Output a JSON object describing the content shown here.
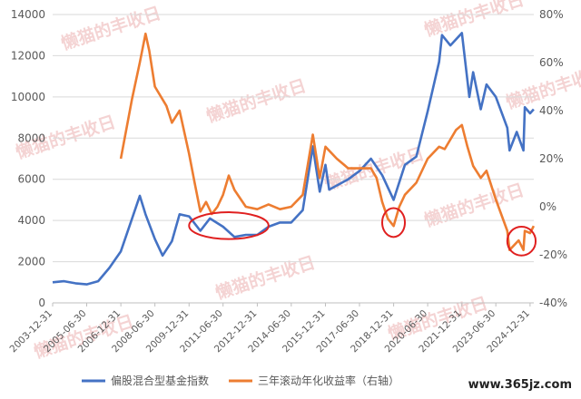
{
  "chart_data": {
    "type": "line",
    "x_tick_labels": [
      "2003-12-31",
      "2005-06-30",
      "2006-12-31",
      "2008-06-30",
      "2009-12-31",
      "2011-06-30",
      "2012-12-31",
      "2014-06-30",
      "2015-12-31",
      "2017-06-30",
      "2018-12-31",
      "2020-06-30",
      "2021-12-31",
      "2023-06-30",
      "2024-12-31"
    ],
    "y_left": {
      "ylim": [
        0,
        14000
      ],
      "ticks": [
        "0",
        "2000",
        "4000",
        "6000",
        "8000",
        "10000",
        "12000",
        "14000"
      ]
    },
    "y_right": {
      "ylim": [
        -0.4,
        0.8
      ],
      "ticks": [
        "-40%",
        "-20%",
        "0%",
        "20%",
        "40%",
        "60%",
        "80%"
      ]
    },
    "series": [
      {
        "name": "偏股混合型基金指数",
        "axis": "left",
        "color": "#4472c4",
        "points": [
          [
            "2003-12-31",
            1000
          ],
          [
            "2004-06-30",
            1050
          ],
          [
            "2004-12-31",
            950
          ],
          [
            "2005-06-30",
            900
          ],
          [
            "2005-12-31",
            1050
          ],
          [
            "2006-06-30",
            1700
          ],
          [
            "2006-12-31",
            2500
          ],
          [
            "2007-06-30",
            4100
          ],
          [
            "2007-10-31",
            5200
          ],
          [
            "2008-01-31",
            4300
          ],
          [
            "2008-06-30",
            3100
          ],
          [
            "2008-10-31",
            2300
          ],
          [
            "2009-03-31",
            3000
          ],
          [
            "2009-07-31",
            4300
          ],
          [
            "2009-12-31",
            4200
          ],
          [
            "2010-06-30",
            3500
          ],
          [
            "2010-11-30",
            4100
          ],
          [
            "2011-06-30",
            3700
          ],
          [
            "2011-12-31",
            3200
          ],
          [
            "2012-06-30",
            3300
          ],
          [
            "2012-12-31",
            3300
          ],
          [
            "2013-06-30",
            3700
          ],
          [
            "2013-12-31",
            3900
          ],
          [
            "2014-06-30",
            3900
          ],
          [
            "2014-12-31",
            4500
          ],
          [
            "2015-06-12",
            7600
          ],
          [
            "2015-09-30",
            5400
          ],
          [
            "2015-12-31",
            6700
          ],
          [
            "2016-02-29",
            5500
          ],
          [
            "2016-12-31",
            6000
          ],
          [
            "2017-06-30",
            6400
          ],
          [
            "2017-12-31",
            7000
          ],
          [
            "2018-06-30",
            6200
          ],
          [
            "2018-12-31",
            5000
          ],
          [
            "2019-06-30",
            6700
          ],
          [
            "2019-12-31",
            7100
          ],
          [
            "2020-06-30",
            9300
          ],
          [
            "2020-12-31",
            11700
          ],
          [
            "2021-02-15",
            13000
          ],
          [
            "2021-06-30",
            12500
          ],
          [
            "2021-12-31",
            13100
          ],
          [
            "2022-04-30",
            10000
          ],
          [
            "2022-06-30",
            11200
          ],
          [
            "2022-10-31",
            9400
          ],
          [
            "2023-01-31",
            10600
          ],
          [
            "2023-06-30",
            10000
          ],
          [
            "2023-12-31",
            8500
          ],
          [
            "2024-02-05",
            7400
          ],
          [
            "2024-05-31",
            8300
          ],
          [
            "2024-09-15",
            7400
          ],
          [
            "2024-10-08",
            9500
          ],
          [
            "2024-12-31",
            9200
          ],
          [
            "2025-02-28",
            9400
          ]
        ]
      },
      {
        "name": "三年滚动年化收益率（右轴）",
        "axis": "right",
        "color": "#ed7d31",
        "points": [
          [
            "2006-12-31",
            0.2
          ],
          [
            "2007-06-30",
            0.45
          ],
          [
            "2007-10-31",
            0.6
          ],
          [
            "2008-01-31",
            0.72
          ],
          [
            "2008-03-31",
            0.65
          ],
          [
            "2008-06-30",
            0.5
          ],
          [
            "2008-12-31",
            0.42
          ],
          [
            "2009-03-31",
            0.35
          ],
          [
            "2009-07-31",
            0.4
          ],
          [
            "2009-12-31",
            0.22
          ],
          [
            "2010-03-31",
            0.1
          ],
          [
            "2010-06-30",
            -0.02
          ],
          [
            "2010-09-30",
            0.02
          ],
          [
            "2010-12-31",
            -0.03
          ],
          [
            "2011-03-31",
            0.0
          ],
          [
            "2011-06-30",
            0.05
          ],
          [
            "2011-09-30",
            0.13
          ],
          [
            "2011-12-31",
            0.07
          ],
          [
            "2012-06-30",
            0.0
          ],
          [
            "2012-12-31",
            -0.01
          ],
          [
            "2013-06-30",
            0.01
          ],
          [
            "2013-12-31",
            -0.01
          ],
          [
            "2014-06-30",
            0.0
          ],
          [
            "2014-12-31",
            0.05
          ],
          [
            "2015-06-12",
            0.3
          ],
          [
            "2015-09-30",
            0.12
          ],
          [
            "2015-12-31",
            0.25
          ],
          [
            "2016-06-30",
            0.2
          ],
          [
            "2016-12-31",
            0.16
          ],
          [
            "2017-06-30",
            0.16
          ],
          [
            "2017-12-31",
            0.16
          ],
          [
            "2018-03-31",
            0.12
          ],
          [
            "2018-06-30",
            0.02
          ],
          [
            "2018-09-30",
            -0.05
          ],
          [
            "2018-12-31",
            -0.08
          ],
          [
            "2019-03-31",
            0.0
          ],
          [
            "2019-06-30",
            0.05
          ],
          [
            "2019-12-31",
            0.1
          ],
          [
            "2020-06-30",
            0.2
          ],
          [
            "2020-12-31",
            0.25
          ],
          [
            "2021-03-31",
            0.24
          ],
          [
            "2021-09-30",
            0.32
          ],
          [
            "2021-12-31",
            0.34
          ],
          [
            "2022-03-31",
            0.25
          ],
          [
            "2022-06-30",
            0.17
          ],
          [
            "2022-10-31",
            0.12
          ],
          [
            "2023-01-31",
            0.15
          ],
          [
            "2023-06-30",
            0.03
          ],
          [
            "2023-12-31",
            -0.1
          ],
          [
            "2024-02-05",
            -0.18
          ],
          [
            "2024-06-30",
            -0.14
          ],
          [
            "2024-09-15",
            -0.18
          ],
          [
            "2024-10-08",
            -0.1
          ],
          [
            "2024-12-31",
            -0.11
          ],
          [
            "2025-02-28",
            -0.08
          ]
        ]
      }
    ],
    "annotations": [
      {
        "type": "ellipse",
        "color": "#e02020",
        "x_range": [
          "2009-12-31",
          "2013-06-30"
        ],
        "y_range_left": [
          3100,
          4400
        ]
      },
      {
        "type": "ellipse",
        "color": "#e02020",
        "x_range": [
          "2018-06-30",
          "2019-06-30"
        ],
        "y_range_left": [
          3200,
          4600
        ]
      },
      {
        "type": "ellipse",
        "color": "#e02020",
        "x_range": [
          "2023-12-31",
          "2025-03-31"
        ],
        "y_range_left": [
          2300,
          3700
        ]
      }
    ],
    "legend_position": "bottom",
    "grid": "horizontal"
  },
  "watermark": {
    "text": "懒猫的丰收日",
    "color": "#e8a0a0"
  },
  "site_label": "www.365jz.com"
}
